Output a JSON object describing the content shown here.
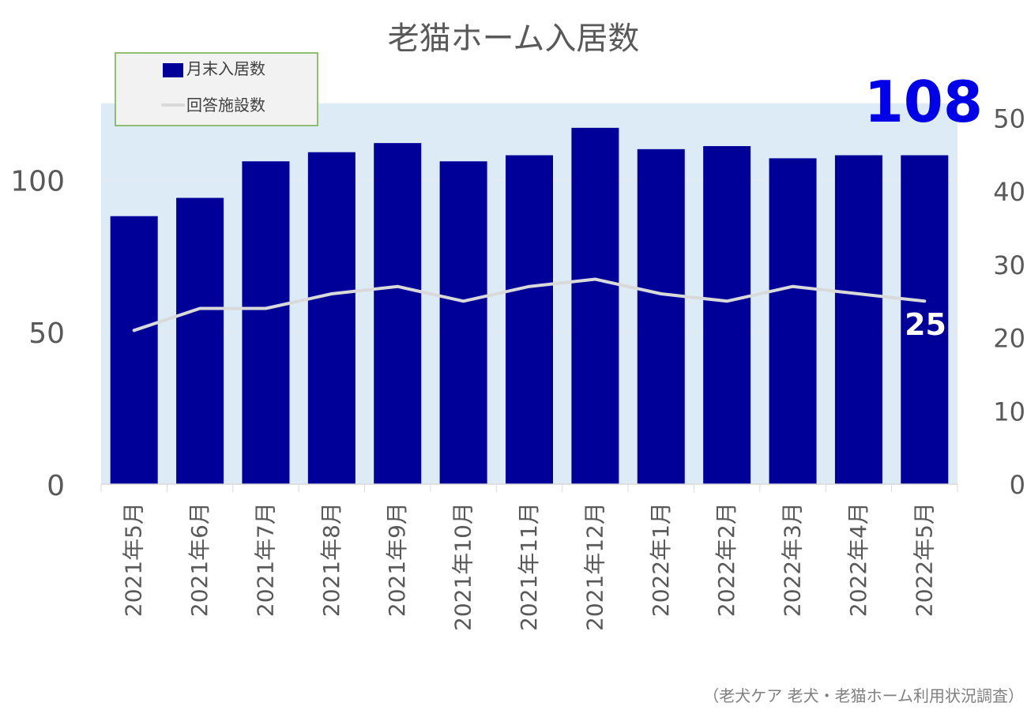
{
  "chart_data": {
    "type": "bar",
    "title": "老猫ホーム入居数",
    "categories": [
      "2021年5月",
      "2021年6月",
      "2021年7月",
      "2021年8月",
      "2021年9月",
      "2021年10月",
      "2021年11月",
      "2021年12月",
      "2022年1月",
      "2022年2月",
      "2022年3月",
      "2022年4月",
      "2022年5月"
    ],
    "series": [
      {
        "name": "月末入居数",
        "chart": "bar",
        "axis": "left",
        "values": [
          88,
          94,
          106,
          109,
          112,
          106,
          108,
          117,
          110,
          111,
          107,
          108,
          108
        ],
        "color": "#000099"
      },
      {
        "name": "回答施設数",
        "chart": "line",
        "axis": "right",
        "values": [
          21,
          24,
          24,
          26,
          27,
          25,
          27,
          28,
          26,
          25,
          27,
          26,
          25
        ],
        "color": "#d9d9d9"
      }
    ],
    "y_left": {
      "min": 0,
      "max": 125,
      "ticks": [
        0,
        50,
        100
      ]
    },
    "y_right": {
      "min": 0,
      "max": 52,
      "ticks": [
        0,
        10,
        20,
        30,
        40,
        50
      ]
    },
    "highlights": {
      "bar_last": {
        "text": "108",
        "color": "#0000e6"
      },
      "line_last": {
        "text": "25",
        "color": "#ffffff"
      }
    },
    "legend_position": "top-left",
    "plot_background": "#ddebf7",
    "source": "（老犬ケア 老犬・老猫ホーム利用状況調査）"
  }
}
